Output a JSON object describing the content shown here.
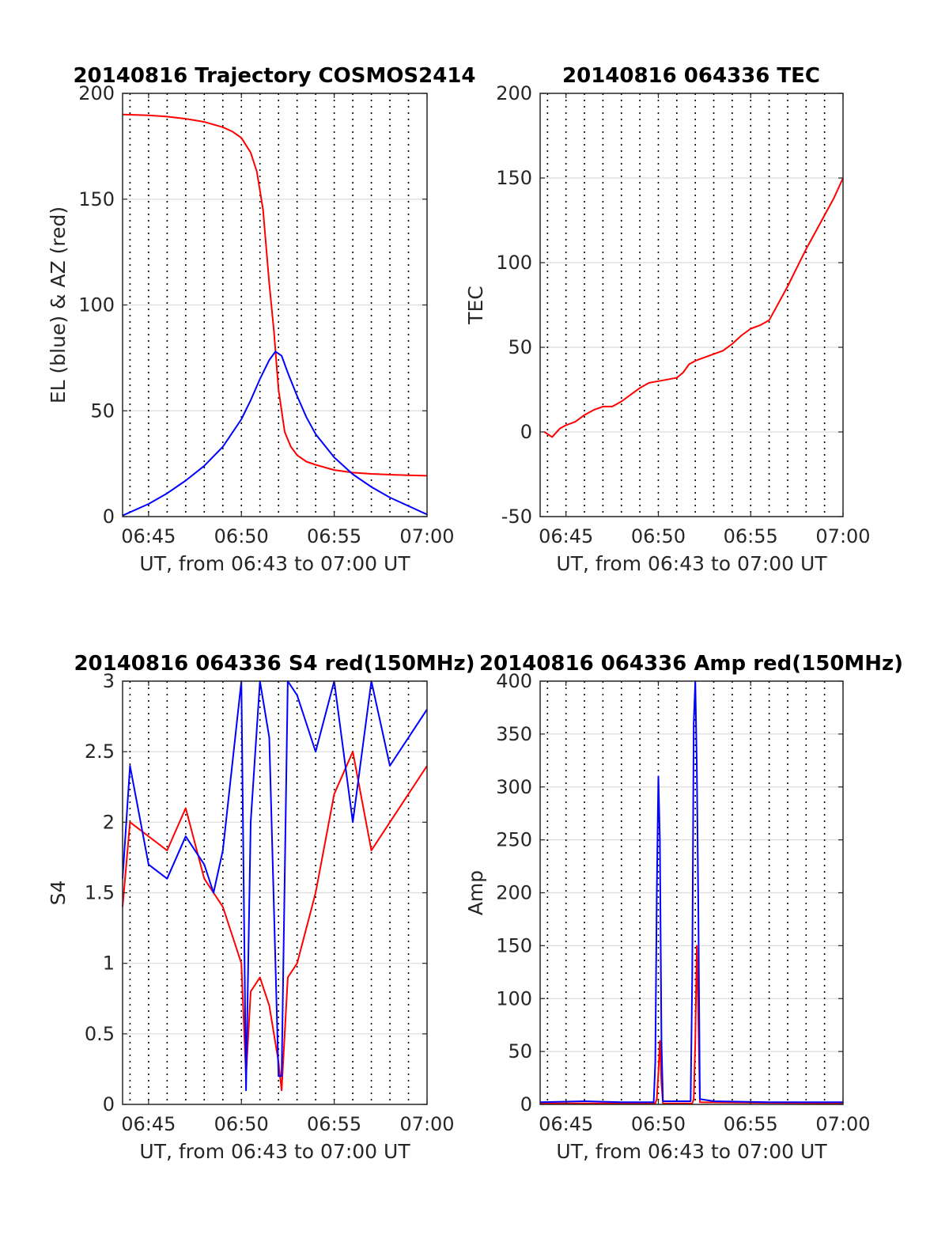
{
  "chart_data": [
    {
      "type": "line",
      "title": "20140816 Trajectory COSMOS2414",
      "xlabel": "UT, from 06:43 to 07:00 UT",
      "ylabel": "EL (blue) & AZ (red)",
      "xlim": [
        "06:43:36",
        "07:00:00"
      ],
      "ylim": [
        0,
        200
      ],
      "xticks": [
        "06:45",
        "06:50",
        "06:55",
        "07:00"
      ],
      "yticks": [
        "0",
        "50",
        "100",
        "150",
        "200"
      ],
      "grid": true,
      "dotted_vlines_minutes": [
        1,
        2,
        3,
        4,
        5,
        6,
        7,
        8,
        9,
        10,
        11,
        12,
        13,
        14,
        15,
        16
      ],
      "series": [
        {
          "color": "#ff0000",
          "x": [
            "06:43:36",
            "06:45:00",
            "06:46:00",
            "06:47:00",
            "06:48:00",
            "06:49:00",
            "06:49:30",
            "06:50:00",
            "06:50:30",
            "06:50:50",
            "06:51:10",
            "06:51:30",
            "06:51:45",
            "06:52:00",
            "06:52:20",
            "06:52:40",
            "06:53:00",
            "06:53:30",
            "06:54:00",
            "06:55:00",
            "06:56:00",
            "06:57:00",
            "06:58:00",
            "07:00:00"
          ],
          "y": [
            190,
            189.6,
            189,
            188,
            186.5,
            184,
            182,
            179,
            172,
            163,
            145,
            110,
            88,
            60,
            40,
            33,
            29,
            26,
            24.5,
            22,
            20.8,
            20.2,
            19.8,
            19.3
          ]
        },
        {
          "color": "#0000ff",
          "x": [
            "06:43:36",
            "06:45:00",
            "06:46:00",
            "06:47:00",
            "06:48:00",
            "06:49:00",
            "06:50:00",
            "06:50:30",
            "06:51:00",
            "06:51:30",
            "06:51:50",
            "06:52:10",
            "06:52:30",
            "06:53:00",
            "06:53:30",
            "06:54:00",
            "06:55:00",
            "06:56:00",
            "06:57:00",
            "06:58:00",
            "06:59:00",
            "07:00:00"
          ],
          "y": [
            0.5,
            6,
            11,
            17,
            24,
            33,
            46,
            55,
            65,
            74,
            78,
            76,
            68,
            57,
            47,
            39,
            28,
            20,
            14,
            9,
            5,
            1
          ]
        }
      ]
    },
    {
      "type": "line",
      "title": "20140816 064336 TEC",
      "xlabel": "UT, from 06:43 to 07:00 UT",
      "ylabel": "TEC",
      "xlim": [
        "06:43:36",
        "07:00:00"
      ],
      "ylim": [
        -50,
        200
      ],
      "xticks": [
        "06:45",
        "06:50",
        "06:55",
        "07:00"
      ],
      "yticks": [
        "-50",
        "0",
        "50",
        "100",
        "150",
        "200"
      ],
      "grid": true,
      "dotted_vlines_minutes": [
        1,
        2,
        3,
        4,
        5,
        6,
        7,
        8,
        9,
        10,
        11,
        12,
        13,
        14,
        15,
        16
      ],
      "series": [
        {
          "color": "#ff0000",
          "x": [
            "06:43:50",
            "06:44:15",
            "06:44:40",
            "06:45:00",
            "06:45:30",
            "06:46:00",
            "06:46:30",
            "06:47:00",
            "06:47:30",
            "06:48:00",
            "06:48:30",
            "06:49:00",
            "06:49:30",
            "06:50:00",
            "06:50:30",
            "06:51:00",
            "06:51:20",
            "06:51:40",
            "06:52:00",
            "06:52:30",
            "06:53:00",
            "06:53:30",
            "06:54:00",
            "06:54:30",
            "06:55:00",
            "06:55:30",
            "06:56:00",
            "06:56:30",
            "06:57:00",
            "06:57:30",
            "06:58:00",
            "06:58:30",
            "06:59:00",
            "06:59:30",
            "07:00:00"
          ],
          "y": [
            0,
            -3,
            2,
            4,
            6,
            10,
            13,
            15,
            15,
            18,
            22,
            26,
            29,
            30,
            31,
            32,
            35,
            40,
            42,
            44,
            46,
            48,
            52,
            57,
            61,
            63,
            66,
            76,
            86,
            97,
            108,
            118,
            128,
            138,
            150
          ]
        }
      ]
    },
    {
      "type": "line",
      "title": "20140816 064336 S4 red(150MHz)",
      "xlabel": "UT, from 06:43 to 07:00 UT",
      "ylabel": "S4",
      "xlim": [
        "06:43:36",
        "07:00:00"
      ],
      "ylim": [
        0,
        3
      ],
      "xticks": [
        "06:45",
        "06:50",
        "06:55",
        "07:00"
      ],
      "yticks": [
        "0",
        "0.5",
        "1",
        "1.5",
        "2",
        "2.5",
        "3"
      ],
      "grid": true,
      "dotted_vlines_minutes": [
        1,
        2,
        3,
        4,
        5,
        6,
        7,
        8,
        9,
        10,
        11,
        12,
        13,
        14,
        15,
        16
      ],
      "series": [
        {
          "color": "#ff0000",
          "x": [
            "06:43:36",
            "06:44:00",
            "06:45:00",
            "06:46:00",
            "06:47:00",
            "06:48:00",
            "06:48:30",
            "06:49:00",
            "06:49:30",
            "06:50:00",
            "06:50:15",
            "06:50:30",
            "06:51:00",
            "06:51:30",
            "06:52:00",
            "06:52:10",
            "06:52:30",
            "06:53:00",
            "06:54:00",
            "06:55:00",
            "06:56:00",
            "06:57:00",
            "06:58:00",
            "06:59:00",
            "07:00:00"
          ],
          "y": [
            1.4,
            2.0,
            1.9,
            1.8,
            2.1,
            1.6,
            1.5,
            1.4,
            1.2,
            1.0,
            0.2,
            0.8,
            0.9,
            0.7,
            0.3,
            0.1,
            0.9,
            1.0,
            1.5,
            2.2,
            2.5,
            1.8,
            2.0,
            2.2,
            2.4
          ]
        },
        {
          "color": "#0000ff",
          "x": [
            "06:43:36",
            "06:44:00",
            "06:45:00",
            "06:46:00",
            "06:47:00",
            "06:48:00",
            "06:48:30",
            "06:49:00",
            "06:49:30",
            "06:50:00",
            "06:50:15",
            "06:50:30",
            "06:51:00",
            "06:51:30",
            "06:52:00",
            "06:52:10",
            "06:52:30",
            "06:53:00",
            "06:54:00",
            "06:55:00",
            "06:56:00",
            "06:57:00",
            "06:58:00",
            "06:59:00",
            "07:00:00"
          ],
          "y": [
            1.6,
            2.4,
            1.7,
            1.6,
            1.9,
            1.7,
            1.5,
            1.8,
            2.4,
            3.0,
            0.1,
            2.0,
            3.0,
            2.6,
            0.2,
            0.2,
            3.0,
            2.9,
            2.5,
            3.0,
            2.0,
            3.0,
            2.4,
            2.6,
            2.8
          ]
        }
      ]
    },
    {
      "type": "line",
      "title": "20140816 064336 Amp red(150MHz)",
      "xlabel": "UT, from 06:43 to 07:00 UT",
      "ylabel": "Amp",
      "xlim": [
        "06:43:36",
        "07:00:00"
      ],
      "ylim": [
        0,
        400
      ],
      "xticks": [
        "06:45",
        "06:50",
        "06:55",
        "07:00"
      ],
      "yticks": [
        "0",
        "50",
        "100",
        "150",
        "200",
        "250",
        "300",
        "350",
        "400"
      ],
      "grid": true,
      "dotted_vlines_minutes": [
        1,
        2,
        3,
        4,
        5,
        6,
        7,
        8,
        9,
        10,
        11,
        12,
        13,
        14,
        15,
        16
      ],
      "series": [
        {
          "color": "#ff0000",
          "x": [
            "06:43:36",
            "06:49:50",
            "06:49:55",
            "06:50:00",
            "06:50:05",
            "06:50:10",
            "06:50:15",
            "06:51:50",
            "06:51:55",
            "06:52:00",
            "06:52:05",
            "06:52:10",
            "06:52:15",
            "07:00:00"
          ],
          "y": [
            1,
            1,
            5,
            30,
            60,
            20,
            1,
            1,
            5,
            60,
            150,
            80,
            2,
            1
          ]
        },
        {
          "color": "#0000ff",
          "x": [
            "06:43:36",
            "06:46:00",
            "06:48:00",
            "06:49:45",
            "06:49:50",
            "06:49:55",
            "06:50:00",
            "06:50:05",
            "06:50:10",
            "06:50:15",
            "06:51:45",
            "06:51:50",
            "06:51:55",
            "06:52:00",
            "06:52:05",
            "06:52:10",
            "06:52:15",
            "06:53:00",
            "06:56:00",
            "07:00:00"
          ],
          "y": [
            2,
            3,
            2,
            2,
            40,
            200,
            310,
            250,
            60,
            3,
            3,
            120,
            360,
            400,
            320,
            180,
            5,
            3,
            2,
            2
          ]
        }
      ]
    }
  ]
}
